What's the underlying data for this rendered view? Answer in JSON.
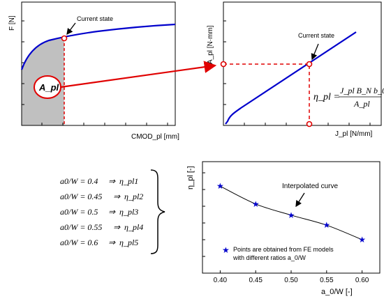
{
  "panel1": {
    "ylabel": "F [N]",
    "xlabel": "CMOD_pl [mm]",
    "annotation": "Current state",
    "area_label": "A_pl"
  },
  "panel2": {
    "ylabel": "A_pl [N·mm]",
    "xlabel": "J_pl [N/mm]",
    "annotation": "Current state",
    "formula": {
      "lhs": "η_pl =",
      "numerator": "J_pl B_N b_0",
      "denominator": "A_pl"
    }
  },
  "equations": [
    {
      "ratio": "a0/W = 0.4",
      "eta": "η_pl1"
    },
    {
      "ratio": "a0/W = 0.45",
      "eta": "η_pl2"
    },
    {
      "ratio": "a0/W = 0.5",
      "eta": "η_pl3"
    },
    {
      "ratio": "a0/W = 0.55",
      "eta": "η_pl4"
    },
    {
      "ratio": "a0/W = 0.6",
      "eta": "η_pl5"
    }
  ],
  "panel3": {
    "ylabel": "η_pl [-]",
    "xlabel": "a_0/W [-]",
    "curve_label": "Interpolated curve",
    "legend_line1": "Points are obtained from FE models",
    "legend_line2": "with different ratios a_0/W"
  },
  "chart_data": {
    "type": "scatter",
    "x": [
      0.4,
      0.45,
      0.5,
      0.55,
      0.6
    ],
    "xticks": [
      "0.40",
      "0.45",
      "0.50",
      "0.55",
      "0.60"
    ],
    "xlim": [
      0.375,
      0.625
    ],
    "y": [
      0.78,
      0.62,
      0.52,
      0.43,
      0.3
    ],
    "ylim": [
      0,
      1
    ],
    "series_marker": "star",
    "colors": {
      "curve": "#0000cc",
      "marker": "#0000cc",
      "arrow": "#e00000",
      "fill": "#c0c0c0"
    }
  }
}
